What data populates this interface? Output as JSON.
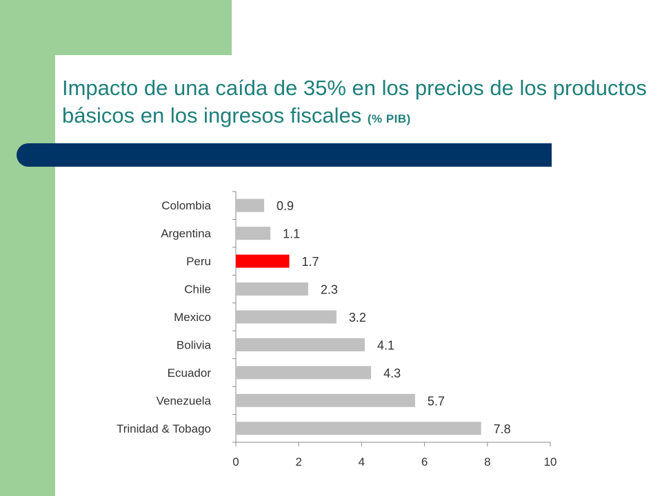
{
  "slide": {
    "title_main": "Impacto de una caída de 35% en los precios de los productos básicos en los ingresos fiscales",
    "title_unit": "(% PIB)"
  },
  "colors": {
    "accent_green": "#9dcf99",
    "title_text": "#1f7f7a",
    "title_bar": "#003466",
    "bar_default": "#c0c0c0",
    "bar_highlight": "#ff0000"
  },
  "chart_data": {
    "type": "bar",
    "orientation": "horizontal",
    "categories": [
      "Colombia",
      "Argentina",
      "Peru",
      "Chile",
      "Mexico",
      "Bolivia",
      "Ecuador",
      "Venezuela",
      "Trinidad & Tobago"
    ],
    "values": [
      0.9,
      1.1,
      1.7,
      2.3,
      3.2,
      4.1,
      4.3,
      5.7,
      7.8
    ],
    "data_labels": [
      "0.9",
      "1.1",
      "1.7",
      "2.3",
      "3.2",
      "4.1",
      "4.3",
      "5.7",
      "7.8"
    ],
    "highlight": "Peru",
    "xlim": [
      0,
      10
    ],
    "xticks": [
      0,
      2,
      4,
      6,
      8,
      10
    ],
    "grid": false,
    "legend": "none"
  }
}
